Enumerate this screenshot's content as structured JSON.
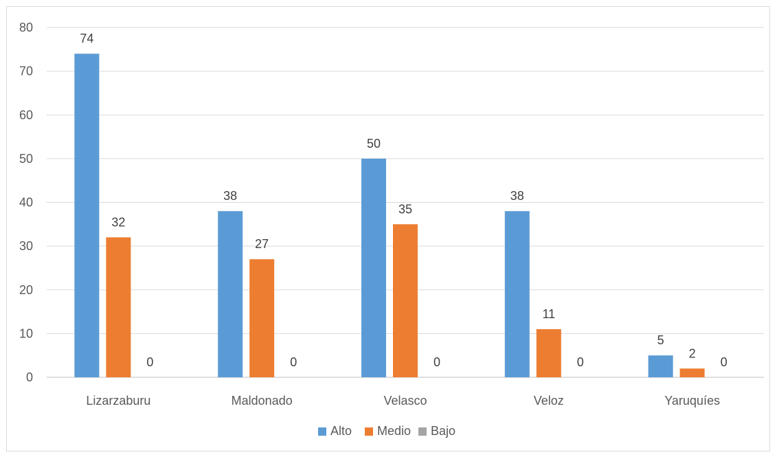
{
  "chart_data": {
    "type": "bar",
    "categories": [
      "Lizarzaburu",
      "Maldonado",
      "Velasco",
      "Veloz",
      "Yaruquíes"
    ],
    "series": [
      {
        "name": "Alto",
        "values": [
          74,
          38,
          50,
          38,
          5
        ],
        "color": "#5b9bd5"
      },
      {
        "name": "Medio",
        "values": [
          32,
          27,
          35,
          11,
          2
        ],
        "color": "#ed7d31"
      },
      {
        "name": "Bajo",
        "values": [
          0,
          0,
          0,
          0,
          0
        ],
        "color": "#a5a5a5"
      }
    ],
    "ylim": [
      0,
      80
    ],
    "yticks": [
      0,
      10,
      20,
      30,
      40,
      50,
      60,
      70,
      80
    ],
    "grid": true,
    "legend": "bottom-center",
    "data_labels": true
  }
}
